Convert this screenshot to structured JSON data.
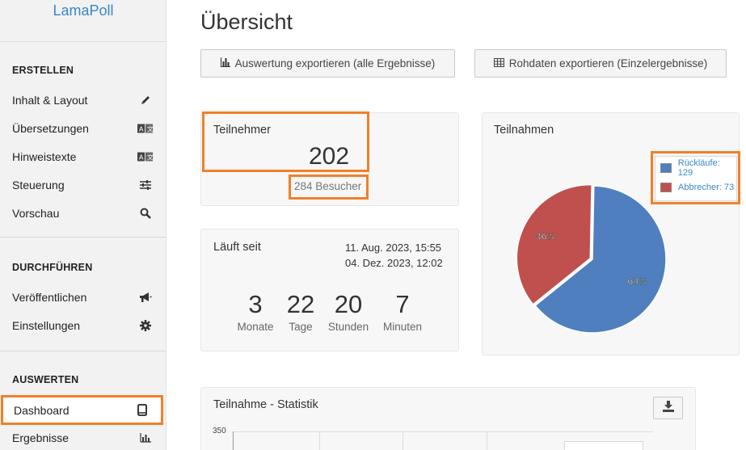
{
  "brand": "LamaPoll",
  "sidebar": {
    "sections": [
      {
        "title": "ERSTELLEN",
        "items": [
          {
            "label": "Inhalt & Layout",
            "icon": "pencil-icon"
          },
          {
            "label": "Übersetzungen",
            "icon": "translate-icon"
          },
          {
            "label": "Hinweistexte",
            "icon": "translate-icon"
          },
          {
            "label": "Steuerung",
            "icon": "sliders-icon"
          },
          {
            "label": "Vorschau",
            "icon": "search-icon"
          }
        ]
      },
      {
        "title": "DURCHFÜHREN",
        "items": [
          {
            "label": "Veröffentlichen",
            "icon": "megaphone-icon"
          },
          {
            "label": "Einstellungen",
            "icon": "gear-icon"
          }
        ]
      },
      {
        "title": "AUSWERTEN",
        "items": [
          {
            "label": "Dashboard",
            "icon": "tablet-icon",
            "active": true
          },
          {
            "label": "Ergebnisse",
            "icon": "bar-chart-icon"
          }
        ]
      }
    ]
  },
  "main": {
    "title": "Übersicht",
    "export_all": "Auswertung exportieren (alle Ergebnisse)",
    "export_raw": "Rohdaten exportieren (Einzelergebnisse)",
    "participants": {
      "title": "Teilnehmer",
      "value": "202",
      "visitors": "284 Besucher"
    },
    "running": {
      "title": "Läuft seit",
      "start": "11. Aug. 2023, 15:55",
      "end": "04. Dez. 2023, 12:02",
      "counters": [
        {
          "value": "3",
          "label": "Monate"
        },
        {
          "value": "22",
          "label": "Tage"
        },
        {
          "value": "20",
          "label": "Stunden"
        },
        {
          "value": "7",
          "label": "Minuten"
        }
      ]
    },
    "participations": {
      "title": "Teilnahmen",
      "legend": [
        "Rückläufe: 129",
        "Abbrecher: 73"
      ],
      "slice_labels": [
        "64%",
        "36%"
      ],
      "colors": {
        "returns": "#4f7fbf",
        "dropouts": "#c0504d"
      }
    },
    "stats": {
      "title": "Teilnahme - Statistik",
      "y_tick": "350"
    }
  },
  "chart_data": {
    "type": "pie",
    "title": "Teilnahmen",
    "categories": [
      "Rückläufe",
      "Abbrecher"
    ],
    "values": [
      129,
      73
    ],
    "percent_labels": [
      "64%",
      "36%"
    ],
    "colors": [
      "#4f7fbf",
      "#c0504d"
    ],
    "legend_position": "top-right"
  }
}
